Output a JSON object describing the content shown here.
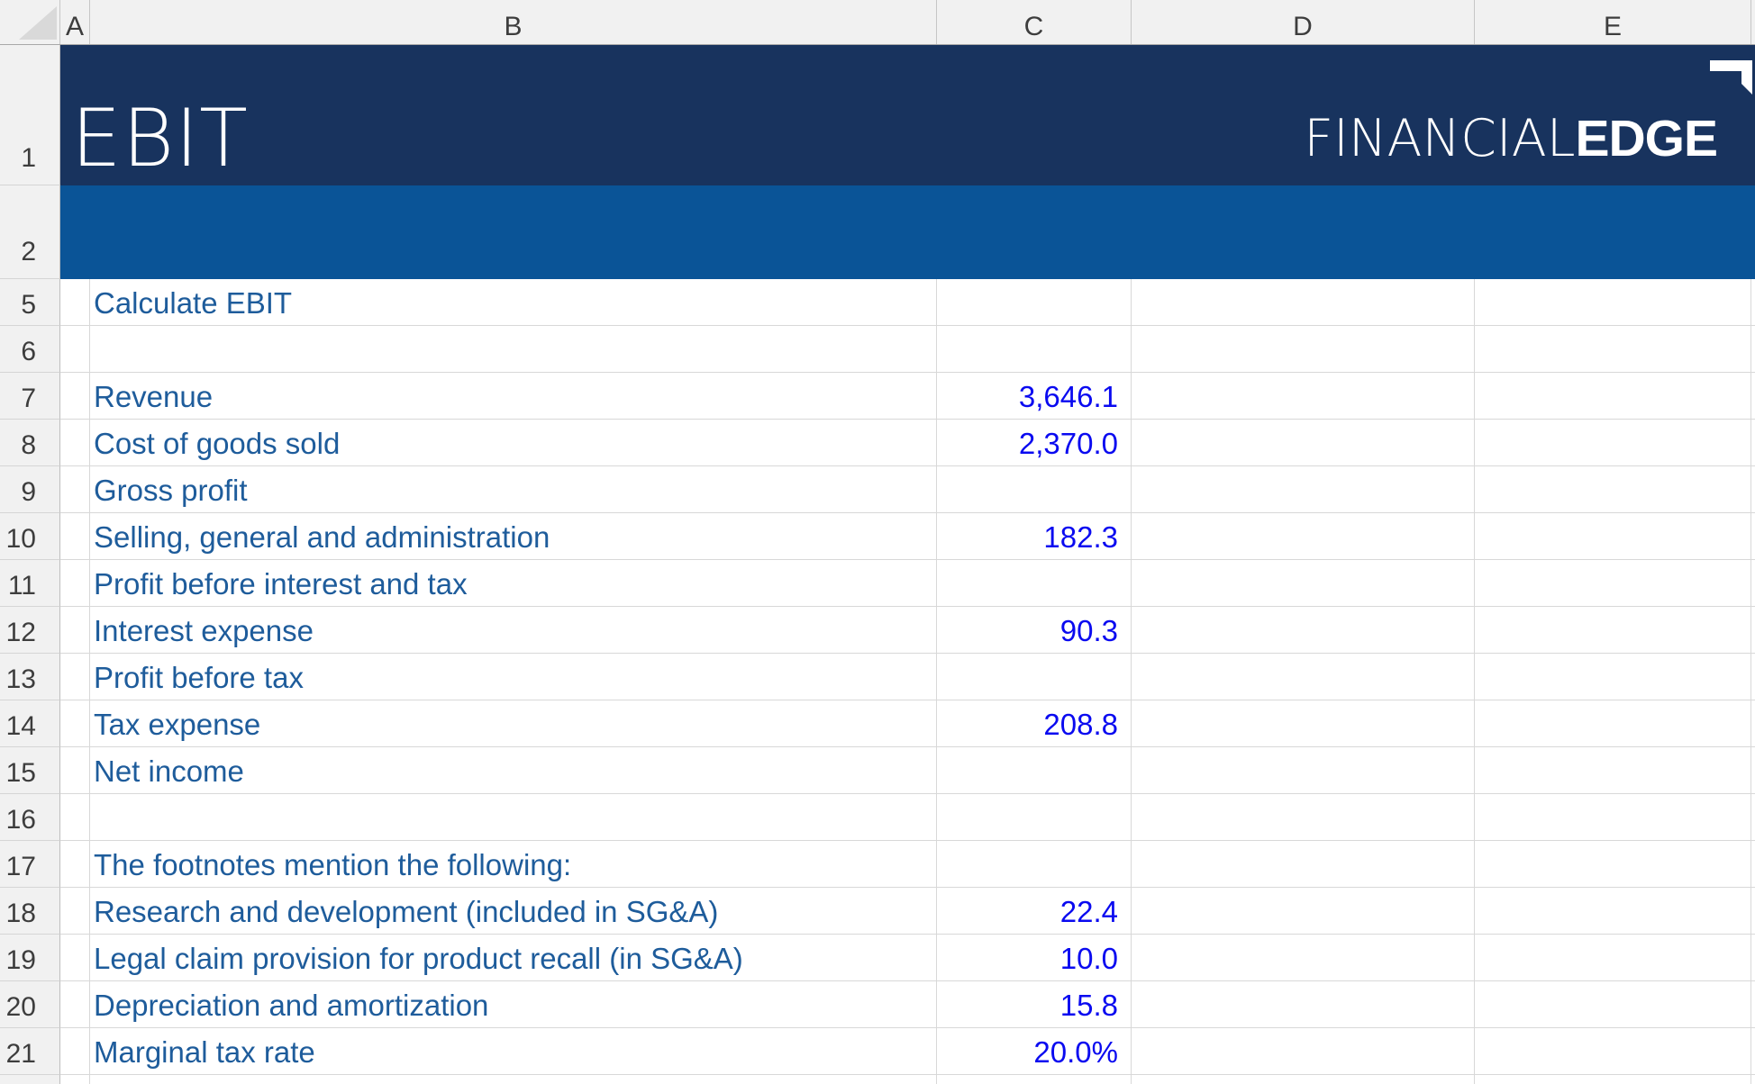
{
  "sheet": {
    "title": "EBIT",
    "logo": {
      "thin": "FINANCIAL",
      "bold": "EDGE",
      "mark": "corner-bracket-icon"
    },
    "column_headers": [
      "A",
      "B",
      "C",
      "D",
      "E",
      ""
    ],
    "row1_num": "1",
    "row2_num": "2",
    "rows": [
      {
        "n": "5",
        "label": "Calculate EBIT",
        "value": ""
      },
      {
        "n": "6",
        "label": "",
        "value": ""
      },
      {
        "n": "7",
        "label": "Revenue",
        "value": "3,646.1"
      },
      {
        "n": "8",
        "label": "Cost of goods sold",
        "value": "2,370.0"
      },
      {
        "n": "9",
        "label": "Gross profit",
        "value": ""
      },
      {
        "n": "10",
        "label": "Selling, general and administration",
        "value": "182.3"
      },
      {
        "n": "11",
        "label": "Profit before interest and tax",
        "value": ""
      },
      {
        "n": "12",
        "label": "Interest expense",
        "value": "90.3"
      },
      {
        "n": "13",
        "label": "Profit before tax",
        "value": ""
      },
      {
        "n": "14",
        "label": "Tax expense",
        "value": "208.8"
      },
      {
        "n": "15",
        "label": "Net income",
        "value": ""
      },
      {
        "n": "16",
        "label": "",
        "value": ""
      },
      {
        "n": "17",
        "label": "The footnotes mention the following:",
        "value": ""
      },
      {
        "n": "18",
        "label": "Research and development (included in SG&A)",
        "value": "22.4"
      },
      {
        "n": "19",
        "label": "Legal claim provision for product recall (in SG&A)",
        "value": "10.0"
      },
      {
        "n": "20",
        "label": "Depreciation and amortization",
        "value": "15.8"
      },
      {
        "n": "21",
        "label": "Marginal tax rate",
        "value": "20.0%"
      }
    ],
    "colors": {
      "banner_top": "#18335E",
      "banner_bottom": "#0A5497",
      "label_text": "#1E5C9B",
      "value_text": "#0A0AF0"
    }
  }
}
